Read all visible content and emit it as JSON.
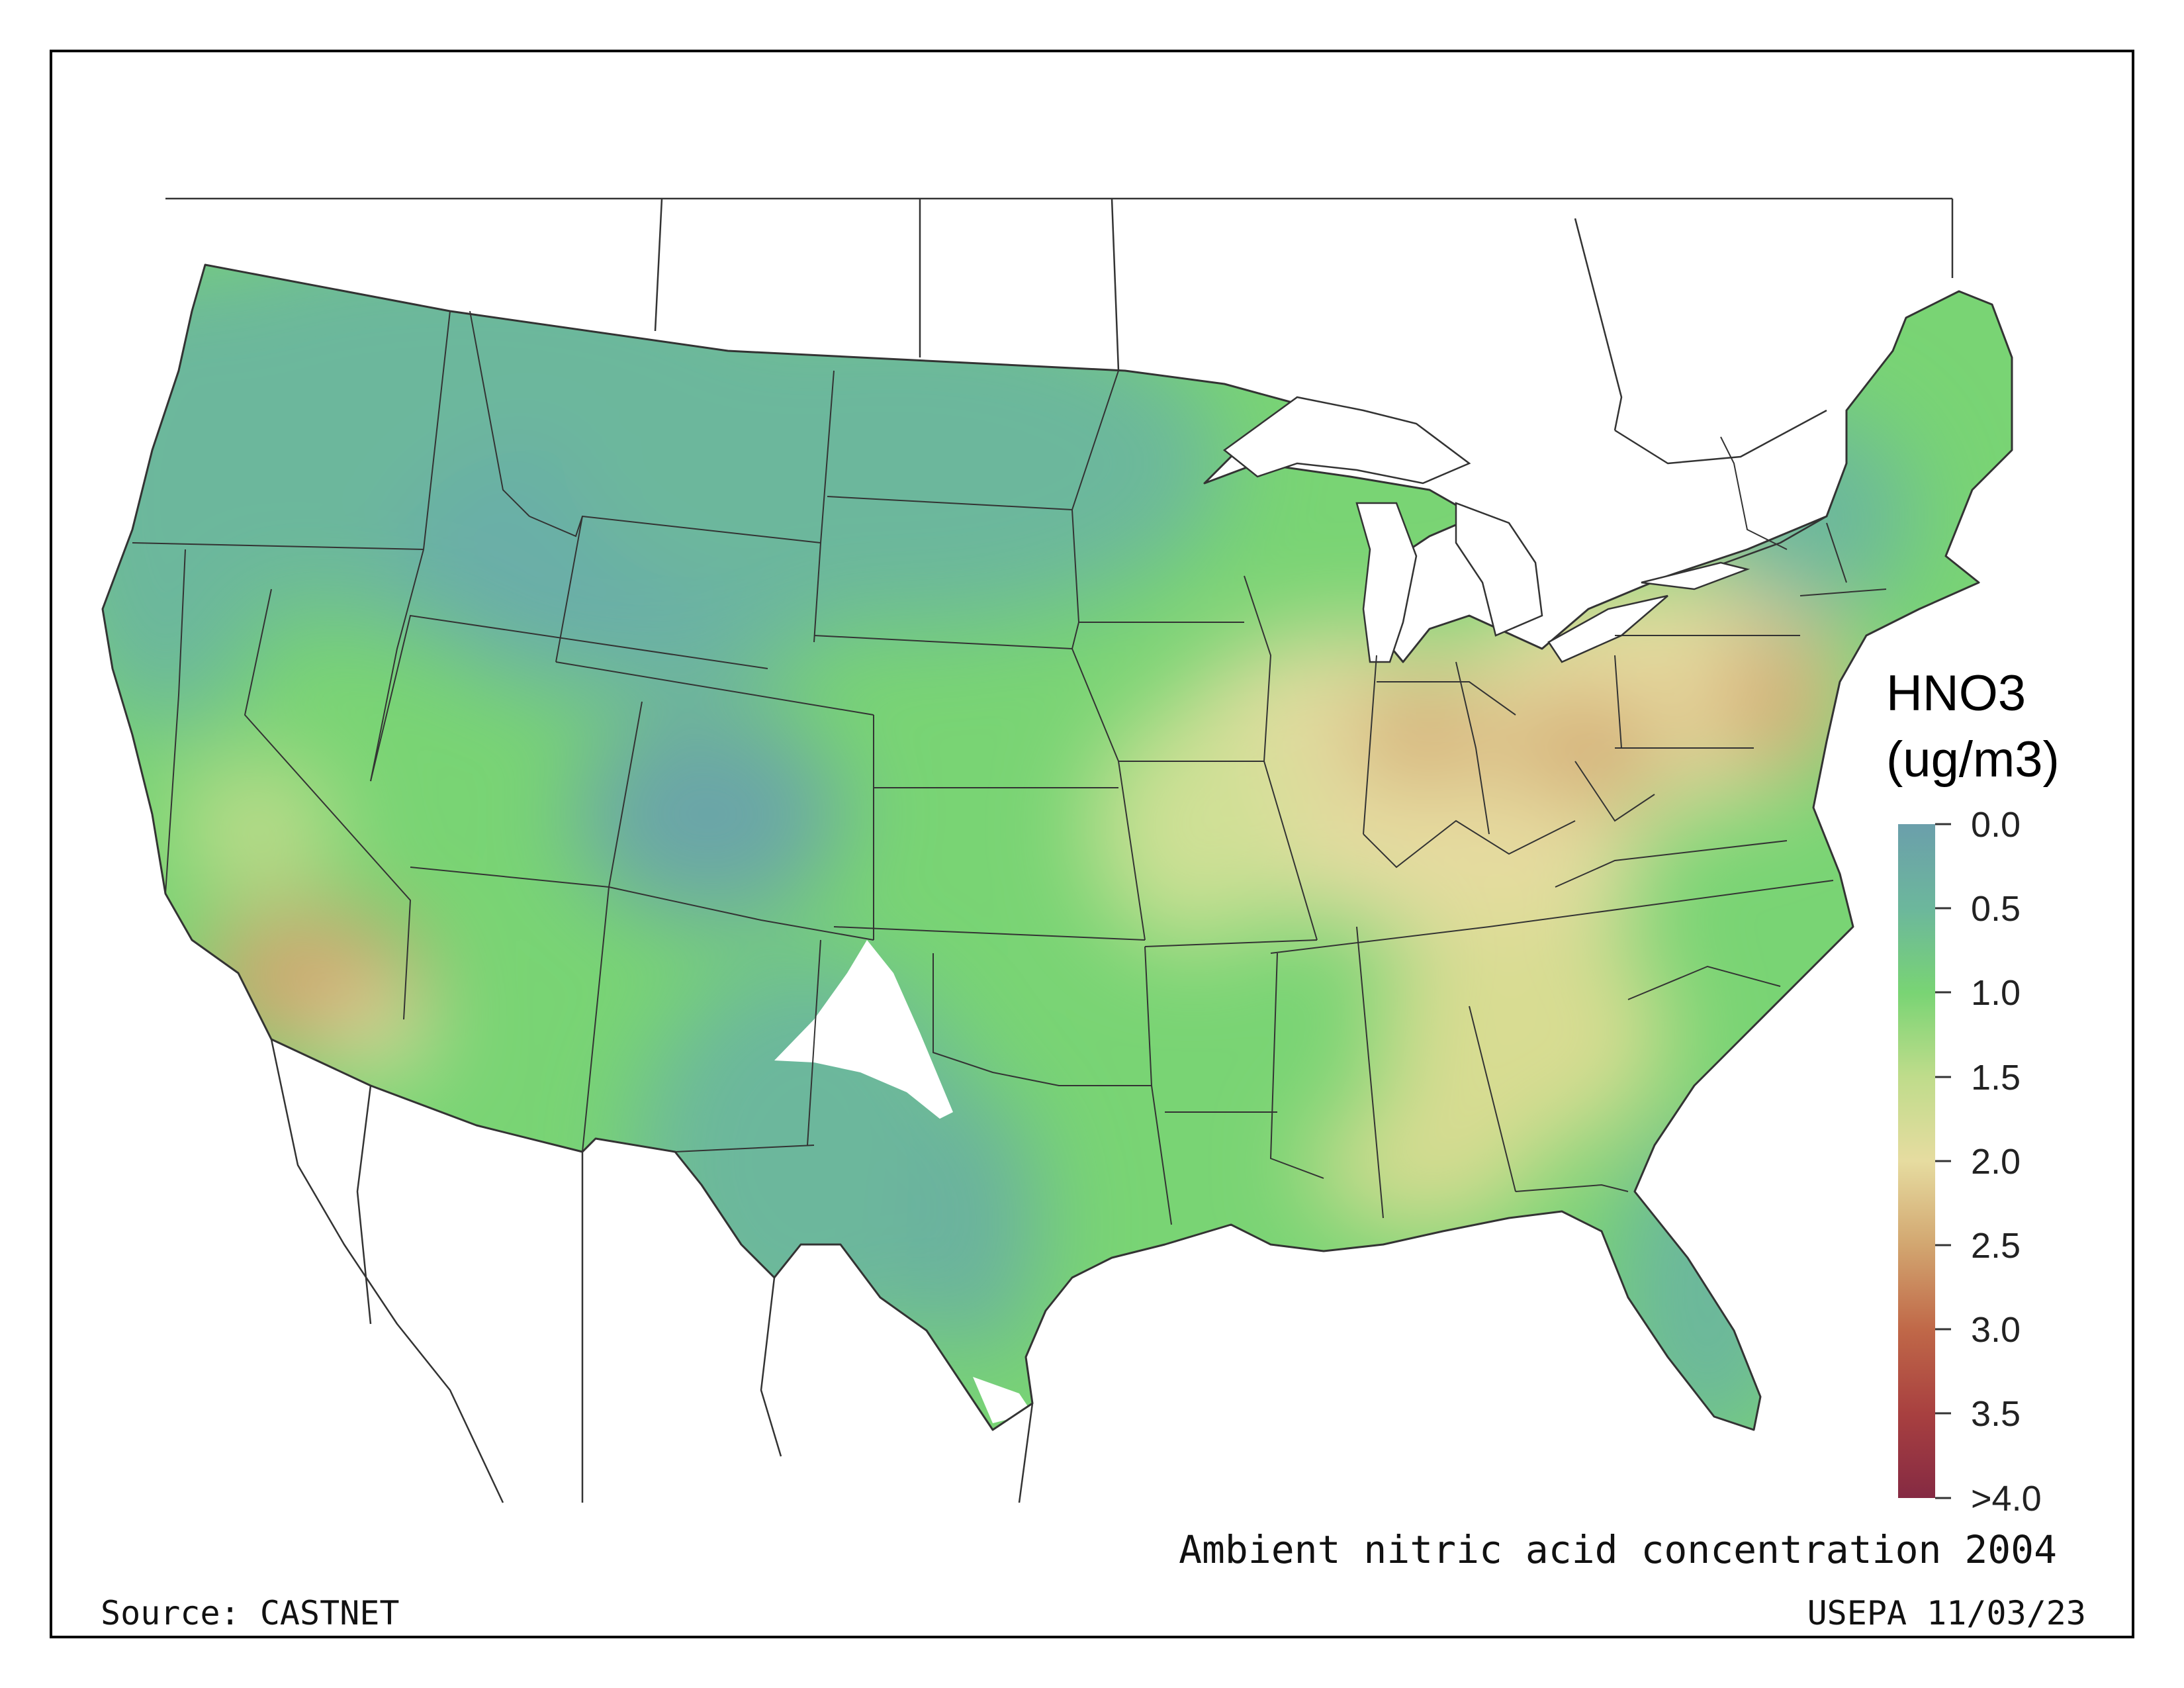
{
  "map": {
    "region": "contiguous-united-states",
    "variable": "HNO3",
    "unit": "(ug/m3)",
    "caption": "Ambient nitric acid concentration 2004",
    "source": "Source: CASTNET",
    "credit": "USEPA 11/03/23"
  },
  "legend": {
    "title": "HNO3",
    "units": "(ug/m3)",
    "ticks": [
      "0.0",
      "0.5",
      "1.0",
      "1.5",
      "2.0",
      "2.5",
      "3.0",
      "3.5",
      ">4.0"
    ],
    "colors": {
      "c0_0": "#6b9fab",
      "c0_5": "#6cb79c",
      "c1_0": "#79d474",
      "c1_5": "#bfdc8b",
      "c2_0": "#e6dca0",
      "c2_5": "#d2a670",
      "c3_0": "#c06848",
      "c3_5": "#a84040",
      "c4_0": "#852a43"
    }
  },
  "features": {
    "high_concentration_areas": [
      "Southern California",
      "Ohio Valley",
      "New Jersey / Philadelphia corridor"
    ],
    "no_data_area": "Texas/New Mexico panhandle region"
  }
}
